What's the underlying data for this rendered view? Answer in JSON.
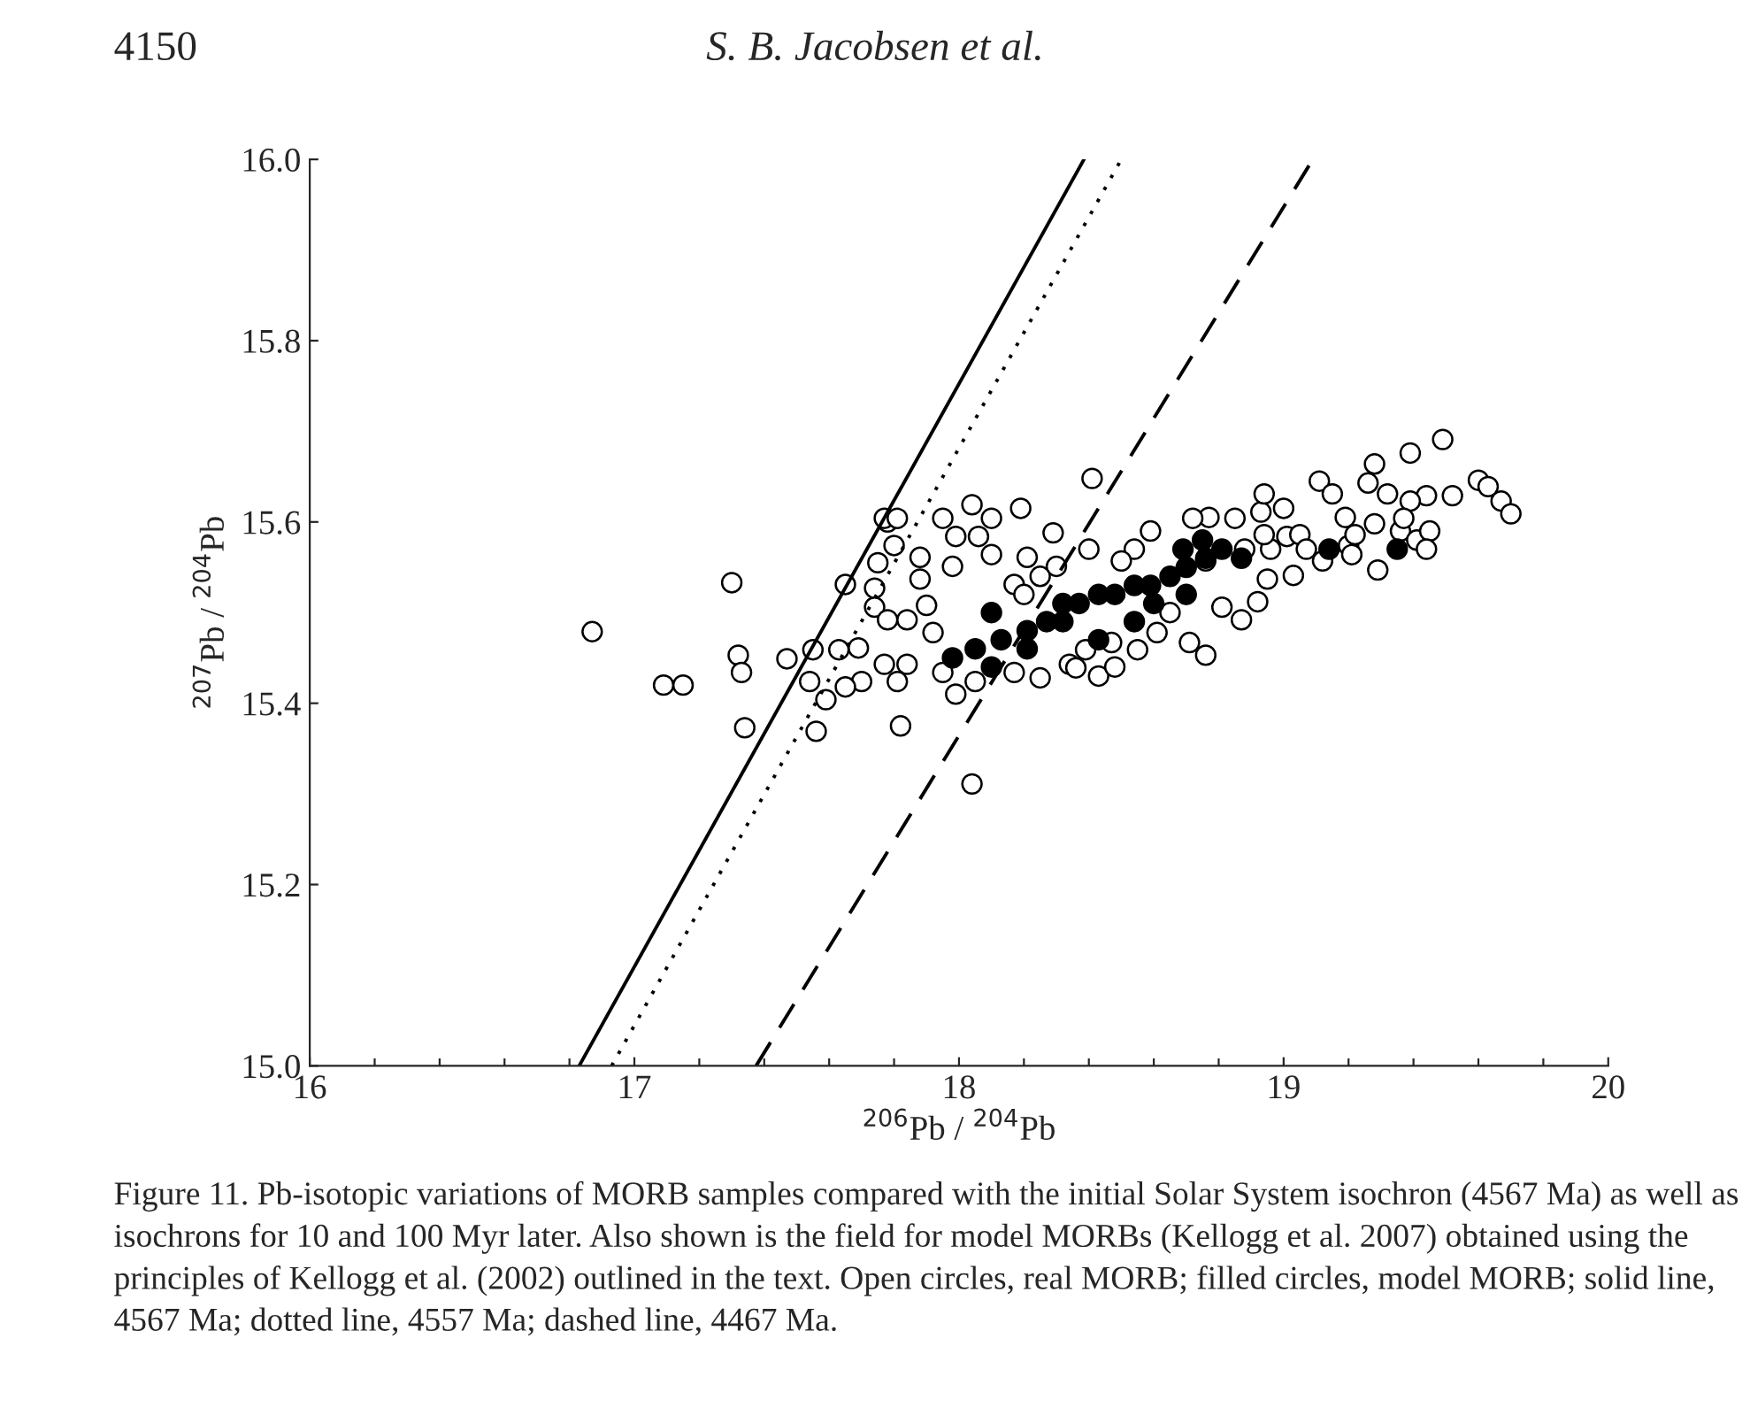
{
  "chart_data": {
    "type": "scatter",
    "xlabel": "$^{206}$Pb / $^{204}$Pb",
    "ylabel": "$^{207}$Pb / $^{204}$Pb",
    "annotations": [
      "4150",
      "S. B. Jacobsen et al.",
      "Figure 11. Pb-isotopic variations of MORB samples compared with the initial Solar System isochron (4567 Ma) as well as isochrons for 10 and 100 Myr later. Also shown is the field for model MORBs (Kellogg et al. 2007) obtained using the principles of Kellogg et al. (2002) outlined in the text. Open circles, real MORB; filled circles, model MORB; solid line, 4567 Ma; dotted line, 4557 Ma; dashed line, 4467 Ma."
    ],
    "xlim": [
      16,
      20
    ],
    "ylim": [
      15,
      16
    ],
    "xticks": [
      16,
      {
        "value": 16.2,
        "label": null
      },
      {
        "value": 16.4,
        "label": null
      },
      {
        "value": 16.6,
        "label": null
      },
      {
        "value": 16.8,
        "label": null
      },
      17,
      {
        "value": 17.2,
        "label": null
      },
      {
        "value": 17.4,
        "label": null
      },
      {
        "value": 17.6,
        "label": null
      },
      {
        "value": 17.8,
        "label": null
      },
      18,
      {
        "value": 18.2,
        "label": null
      },
      {
        "value": 18.4,
        "label": null
      },
      {
        "value": 18.6,
        "label": null
      },
      {
        "value": 18.8,
        "label": null
      },
      19,
      {
        "value": 19.2,
        "label": null
      },
      {
        "value": 19.4,
        "label": null
      },
      {
        "value": 19.6,
        "label": null
      },
      {
        "value": 19.8,
        "label": null
      },
      20
    ],
    "yticks": [
      {
        "value": 15,
        "label": "15.0"
      },
      15.2,
      15.4,
      15.6,
      15.8,
      {
        "value": 16,
        "label": "16.0"
      }
    ],
    "grid": false,
    "legend": false,
    "marker": "circle",
    "series": [
      {
        "type": "line",
        "marker": "none",
        "color": "#000000",
        "line_style": "solid",
        "x": [
          16.83,
          18.385
        ],
        "values": [
          15.0,
          16.0
        ]
      },
      {
        "type": "line",
        "marker": "none",
        "color": "#000000",
        "line_style": "dotted",
        "x": [
          16.93,
          18.5
        ],
        "values": [
          15.0,
          16.0
        ]
      },
      {
        "type": "line",
        "marker": "none",
        "color": "#000000",
        "line_style": "dashed",
        "x": [
          17.375,
          19.09
        ],
        "values": [
          15.0,
          16.0
        ]
      },
      {
        "color": "#ffffff",
        "x": [
          16.87,
          17.09,
          17.15,
          17.3,
          17.32,
          17.33,
          17.34,
          17.47,
          17.55,
          17.56,
          17.59,
          17.65,
          17.75,
          17.78,
          17.82,
          18.04,
          18.41,
          18.04,
          19.49,
          19.39,
          19.28,
          19.6,
          19.63,
          19.67,
          19.7,
          19.44,
          19.11,
          19.29,
          19.2,
          19.01,
          18.93,
          19.28,
          19.36,
          19.41,
          17.77,
          17.81,
          17.95,
          18.1,
          18.19,
          18.29,
          17.8,
          17.88,
          17.99,
          18.06,
          17.88,
          17.74,
          17.74,
          17.78,
          17.84,
          17.9,
          17.92,
          17.69,
          17.63,
          17.77,
          17.84,
          17.81,
          17.7,
          17.65,
          17.95,
          17.99,
          18.05,
          18.17,
          18.25,
          18.34,
          18.39,
          17.98,
          18.1,
          18.21,
          18.3,
          18.17,
          17.54,
          18.94,
          19.0,
          18.85,
          18.77,
          18.72,
          19.15,
          19.26,
          19.52,
          19.32,
          19.39,
          19.45,
          19.44,
          19.19,
          19.22,
          19.05,
          19.07,
          19.03,
          19.12,
          19.21,
          18.96,
          18.95,
          18.92,
          18.87,
          18.76,
          18.71,
          18.81,
          18.43,
          18.36,
          18.47,
          18.55,
          18.61,
          18.94,
          18.88,
          18.76,
          18.59,
          18.54,
          18.5,
          19.37,
          18.25,
          18.4,
          18.65,
          18.48,
          18.2
        ],
        "values": [
          15.479,
          15.42,
          15.42,
          15.533,
          15.453,
          15.434,
          15.373,
          15.449,
          15.459,
          15.369,
          15.404,
          15.531,
          15.555,
          15.6,
          15.375,
          15.311,
          15.648,
          15.619,
          15.691,
          15.676,
          15.664,
          15.646,
          15.639,
          15.623,
          15.609,
          15.629,
          15.645,
          15.547,
          15.574,
          15.584,
          15.611,
          15.598,
          15.59,
          15.58,
          15.604,
          15.604,
          15.604,
          15.604,
          15.615,
          15.588,
          15.574,
          15.561,
          15.584,
          15.584,
          15.537,
          15.527,
          15.506,
          15.492,
          15.492,
          15.508,
          15.478,
          15.461,
          15.459,
          15.443,
          15.443,
          15.424,
          15.424,
          15.418,
          15.434,
          15.41,
          15.424,
          15.434,
          15.428,
          15.443,
          15.459,
          15.551,
          15.564,
          15.561,
          15.551,
          15.531,
          15.424,
          15.631,
          15.615,
          15.604,
          15.605,
          15.604,
          15.631,
          15.643,
          15.629,
          15.631,
          15.623,
          15.59,
          15.57,
          15.605,
          15.586,
          15.586,
          15.57,
          15.541,
          15.557,
          15.564,
          15.57,
          15.537,
          15.512,
          15.492,
          15.453,
          15.467,
          15.506,
          15.43,
          15.439,
          15.467,
          15.459,
          15.478,
          15.586,
          15.57,
          15.557,
          15.59,
          15.57,
          15.557,
          15.604,
          15.54,
          15.57,
          15.5,
          15.44,
          15.52
        ]
      },
      {
        "color": "#000000",
        "x": [
          17.98,
          18.05,
          18.1,
          18.13,
          18.21,
          18.27,
          18.32,
          18.37,
          18.43,
          18.48,
          18.54,
          18.59,
          18.65,
          18.7,
          18.76,
          18.81,
          18.87,
          18.69,
          18.75,
          18.54,
          18.43,
          18.32,
          18.21,
          18.1,
          18.6,
          18.7,
          19.14,
          19.35
        ],
        "values": [
          15.45,
          15.46,
          15.5,
          15.47,
          15.48,
          15.49,
          15.49,
          15.51,
          15.52,
          15.52,
          15.53,
          15.53,
          15.54,
          15.55,
          15.56,
          15.57,
          15.56,
          15.57,
          15.58,
          15.49,
          15.47,
          15.51,
          15.46,
          15.44,
          15.51,
          15.52,
          15.57,
          15.57
        ]
      }
    ]
  }
}
